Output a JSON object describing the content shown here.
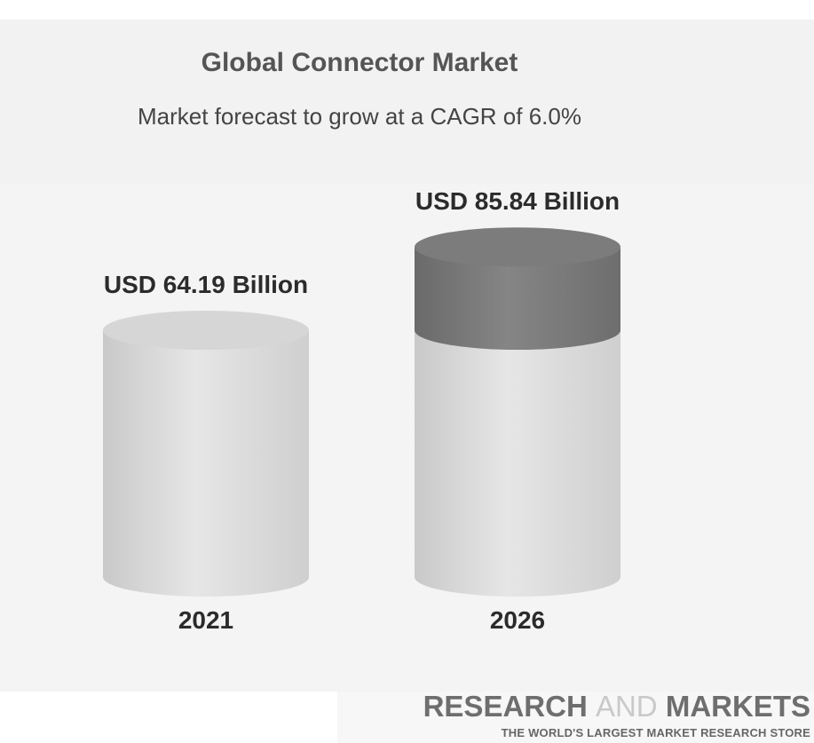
{
  "chart_data": {
    "type": "bar",
    "title": "Global Connector Market",
    "subtitle": "Market forecast to grow at a CAGR of 6.0%",
    "categories": [
      "2021",
      "2026"
    ],
    "series": [
      {
        "values": [
          64.19,
          85.84
        ]
      }
    ],
    "data_labels": [
      "USD 64.19 Billion",
      "USD 85.84 Billion"
    ],
    "unit": "USD Billion",
    "colors": {
      "cylinder": "#dcdcdc",
      "increment": "#7a7a7a"
    }
  },
  "branding": {
    "word1": "RESEARCH",
    "word2": "AND",
    "word3": "MARKETS",
    "tagline": "THE WORLD'S LARGEST MARKET RESEARCH STORE"
  }
}
